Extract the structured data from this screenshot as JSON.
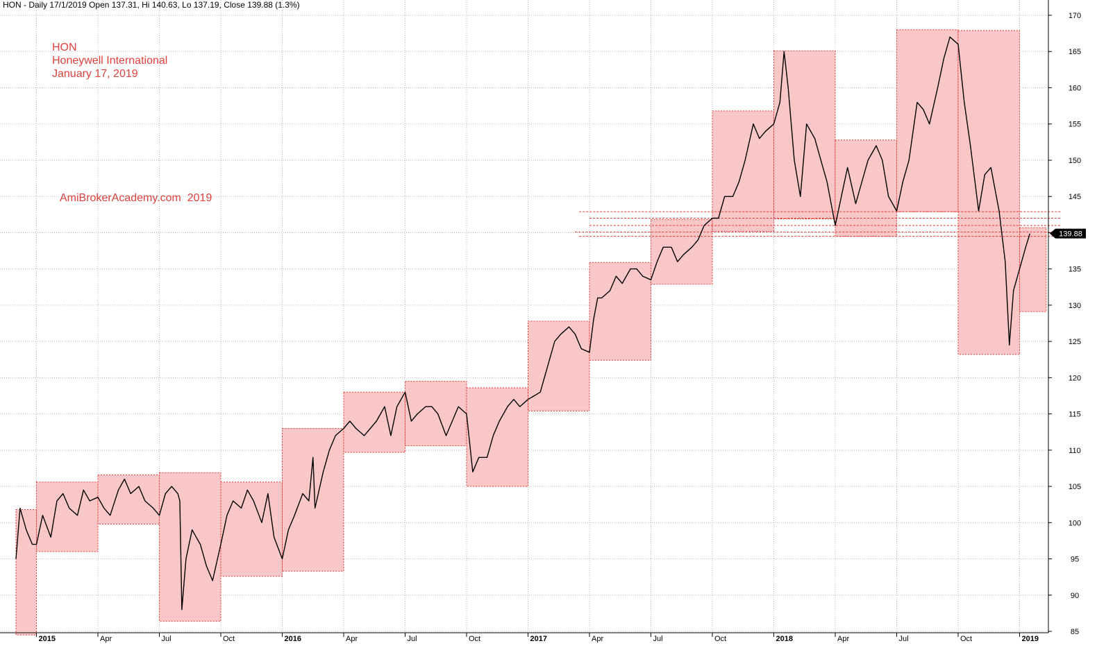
{
  "header": {
    "info_line": "HON - Daily 17/1/2019 Open 137.31, Hi 140.63, Lo 137.19, Close 139.88 (1.3%)"
  },
  "annotation": {
    "ticker": "HON",
    "company": "Honeywell International",
    "date": "January 17, 2019",
    "brand": "AmiBrokerAcademy.com  2019"
  },
  "colors": {
    "box_fill": "#f9c4c4",
    "box_border": "#e53935",
    "price_line": "#000000",
    "grid": "#b5b5b5",
    "annotation_text": "#e0403c"
  },
  "chart_data": {
    "type": "line",
    "x_unit": "month",
    "y_axis": {
      "min": 85,
      "max": 170,
      "ticks": [
        85,
        90,
        95,
        100,
        105,
        110,
        115,
        120,
        125,
        130,
        135,
        140,
        145,
        150,
        155,
        160,
        165,
        170
      ],
      "position": "right"
    },
    "x_axis": {
      "start": "2014-12",
      "end": "2019-01",
      "ticks": [
        {
          "label": "2015",
          "x": 1,
          "bold": true
        },
        {
          "label": "Apr",
          "x": 4,
          "bold": false
        },
        {
          "label": "Jul",
          "x": 7,
          "bold": false
        },
        {
          "label": "Oct",
          "x": 10,
          "bold": false
        },
        {
          "label": "2016",
          "x": 13,
          "bold": true
        },
        {
          "label": "Apr",
          "x": 16,
          "bold": false
        },
        {
          "label": "Jul",
          "x": 19,
          "bold": false
        },
        {
          "label": "Oct",
          "x": 22,
          "bold": false
        },
        {
          "label": "2017",
          "x": 25,
          "bold": true
        },
        {
          "label": "Apr",
          "x": 28,
          "bold": false
        },
        {
          "label": "Jul",
          "x": 31,
          "bold": false
        },
        {
          "label": "Oct",
          "x": 34,
          "bold": false
        },
        {
          "label": "2018",
          "x": 37,
          "bold": true
        },
        {
          "label": "Apr",
          "x": 40,
          "bold": false
        },
        {
          "label": "Jul",
          "x": 43,
          "bold": false
        },
        {
          "label": "Oct",
          "x": 46,
          "bold": false
        },
        {
          "label": "2019",
          "x": 49,
          "bold": true
        }
      ]
    },
    "grid": true,
    "last_close_label": "139.88",
    "last_close": 139.88,
    "price_series": [
      [
        0.0,
        95
      ],
      [
        0.2,
        102
      ],
      [
        0.5,
        99
      ],
      [
        0.8,
        97
      ],
      [
        1.0,
        97
      ],
      [
        1.3,
        101
      ],
      [
        1.7,
        98
      ],
      [
        2.0,
        103
      ],
      [
        2.3,
        104
      ],
      [
        2.6,
        102
      ],
      [
        3.0,
        101
      ],
      [
        3.3,
        104.5
      ],
      [
        3.6,
        103
      ],
      [
        4.0,
        103.5
      ],
      [
        4.3,
        102
      ],
      [
        4.6,
        101
      ],
      [
        5.0,
        104.5
      ],
      [
        5.3,
        106
      ],
      [
        5.6,
        104
      ],
      [
        6.0,
        105
      ],
      [
        6.3,
        103
      ],
      [
        6.7,
        102
      ],
      [
        7.0,
        101
      ],
      [
        7.3,
        104
      ],
      [
        7.6,
        105
      ],
      [
        7.9,
        104
      ],
      [
        8.0,
        103
      ],
      [
        8.1,
        88
      ],
      [
        8.3,
        95
      ],
      [
        8.6,
        99
      ],
      [
        9.0,
        97
      ],
      [
        9.3,
        94
      ],
      [
        9.6,
        92
      ],
      [
        10.0,
        97
      ],
      [
        10.3,
        101
      ],
      [
        10.6,
        103
      ],
      [
        11.0,
        102
      ],
      [
        11.3,
        104.5
      ],
      [
        11.6,
        103
      ],
      [
        12.0,
        100
      ],
      [
        12.3,
        104
      ],
      [
        12.6,
        98
      ],
      [
        13.0,
        95
      ],
      [
        13.3,
        99
      ],
      [
        13.6,
        101
      ],
      [
        14.0,
        104
      ],
      [
        14.3,
        103
      ],
      [
        14.5,
        109
      ],
      [
        14.6,
        102
      ],
      [
        15.0,
        107
      ],
      [
        15.3,
        110
      ],
      [
        15.6,
        112
      ],
      [
        16.0,
        113
      ],
      [
        16.3,
        114
      ],
      [
        16.6,
        113
      ],
      [
        17.0,
        112
      ],
      [
        17.3,
        113
      ],
      [
        17.6,
        114
      ],
      [
        18.0,
        116
      ],
      [
        18.3,
        112
      ],
      [
        18.6,
        116
      ],
      [
        19.0,
        118
      ],
      [
        19.3,
        114
      ],
      [
        19.6,
        115
      ],
      [
        20.0,
        116
      ],
      [
        20.3,
        116
      ],
      [
        20.6,
        115
      ],
      [
        21.0,
        112
      ],
      [
        21.3,
        114
      ],
      [
        21.6,
        116
      ],
      [
        22.0,
        115
      ],
      [
        22.3,
        107
      ],
      [
        22.6,
        109
      ],
      [
        23.0,
        109
      ],
      [
        23.3,
        112
      ],
      [
        23.6,
        114
      ],
      [
        24.0,
        116
      ],
      [
        24.3,
        117
      ],
      [
        24.6,
        116
      ],
      [
        25.0,
        117
      ],
      [
        25.3,
        117.5
      ],
      [
        25.6,
        118
      ],
      [
        26.0,
        122
      ],
      [
        26.3,
        125
      ],
      [
        26.6,
        126
      ],
      [
        27.0,
        127
      ],
      [
        27.3,
        126
      ],
      [
        27.6,
        124
      ],
      [
        28.0,
        123.5
      ],
      [
        28.2,
        128
      ],
      [
        28.4,
        131
      ],
      [
        28.6,
        131
      ],
      [
        29.0,
        132
      ],
      [
        29.3,
        134
      ],
      [
        29.6,
        133
      ],
      [
        30.0,
        135
      ],
      [
        30.3,
        135
      ],
      [
        30.6,
        134
      ],
      [
        31.0,
        133.5
      ],
      [
        31.3,
        136
      ],
      [
        31.6,
        138
      ],
      [
        32.0,
        138
      ],
      [
        32.3,
        136
      ],
      [
        32.6,
        137
      ],
      [
        33.0,
        138
      ],
      [
        33.3,
        139
      ],
      [
        33.6,
        141
      ],
      [
        34.0,
        142
      ],
      [
        34.3,
        142
      ],
      [
        34.6,
        145
      ],
      [
        35.0,
        145
      ],
      [
        35.3,
        147
      ],
      [
        35.6,
        150
      ],
      [
        36.0,
        155
      ],
      [
        36.3,
        153
      ],
      [
        36.6,
        154
      ],
      [
        37.0,
        155
      ],
      [
        37.3,
        158
      ],
      [
        37.5,
        165
      ],
      [
        37.7,
        160
      ],
      [
        38.0,
        150
      ],
      [
        38.3,
        145
      ],
      [
        38.6,
        155
      ],
      [
        39.0,
        153
      ],
      [
        39.3,
        150
      ],
      [
        39.6,
        147
      ],
      [
        40.0,
        141
      ],
      [
        40.3,
        145
      ],
      [
        40.6,
        149
      ],
      [
        41.0,
        144
      ],
      [
        41.3,
        147
      ],
      [
        41.6,
        150
      ],
      [
        42.0,
        152
      ],
      [
        42.3,
        150
      ],
      [
        42.6,
        145
      ],
      [
        43.0,
        143
      ],
      [
        43.3,
        147
      ],
      [
        43.6,
        150
      ],
      [
        44.0,
        158
      ],
      [
        44.3,
        157
      ],
      [
        44.6,
        155
      ],
      [
        45.0,
        160
      ],
      [
        45.3,
        164
      ],
      [
        45.6,
        167
      ],
      [
        46.0,
        166
      ],
      [
        46.3,
        158
      ],
      [
        46.6,
        152
      ],
      [
        47.0,
        143
      ],
      [
        47.3,
        148
      ],
      [
        47.6,
        149
      ],
      [
        48.0,
        143
      ],
      [
        48.3,
        136
      ],
      [
        48.5,
        124.5
      ],
      [
        48.7,
        132
      ],
      [
        49.0,
        135
      ],
      [
        49.3,
        138
      ],
      [
        49.5,
        139.88
      ]
    ],
    "boxes": [
      {
        "x1": 0.0,
        "x2": 1.0,
        "low": 84.5,
        "high": 101.8
      },
      {
        "x1": 1.0,
        "x2": 4.0,
        "low": 96.0,
        "high": 105.6
      },
      {
        "x1": 4.0,
        "x2": 7.0,
        "low": 99.8,
        "high": 106.6
      },
      {
        "x1": 7.0,
        "x2": 10.0,
        "low": 86.4,
        "high": 106.9
      },
      {
        "x1": 10.0,
        "x2": 13.0,
        "low": 92.6,
        "high": 105.6
      },
      {
        "x1": 13.0,
        "x2": 16.0,
        "low": 93.3,
        "high": 113.0
      },
      {
        "x1": 16.0,
        "x2": 19.0,
        "low": 109.7,
        "high": 118.0
      },
      {
        "x1": 19.0,
        "x2": 22.0,
        "low": 110.6,
        "high": 119.5
      },
      {
        "x1": 22.0,
        "x2": 25.0,
        "low": 105.0,
        "high": 118.6
      },
      {
        "x1": 25.0,
        "x2": 28.0,
        "low": 115.4,
        "high": 127.8
      },
      {
        "x1": 28.0,
        "x2": 31.0,
        "low": 122.4,
        "high": 135.9
      },
      {
        "x1": 31.0,
        "x2": 34.0,
        "low": 132.9,
        "high": 141.8
      },
      {
        "x1": 34.0,
        "x2": 37.0,
        "low": 140.2,
        "high": 156.8
      },
      {
        "x1": 37.0,
        "x2": 40.0,
        "low": 141.9,
        "high": 165.1
      },
      {
        "x1": 40.0,
        "x2": 43.0,
        "low": 139.5,
        "high": 152.8
      },
      {
        "x1": 43.0,
        "x2": 46.0,
        "low": 142.9,
        "high": 168.0
      },
      {
        "x1": 46.0,
        "x2": 49.0,
        "low": 123.2,
        "high": 167.9
      },
      {
        "x1": 49.0,
        "x2": 50.3,
        "low": 129.1,
        "high": 140.7
      }
    ],
    "hlines": [
      {
        "y": 142.9,
        "x1": 27.5
      },
      {
        "y": 142.0,
        "x1": 28.0
      },
      {
        "y": 141.0,
        "x1": 28.0
      },
      {
        "y": 140.1,
        "x1": 27.3
      },
      {
        "y": 139.5,
        "x1": 27.5
      }
    ]
  }
}
